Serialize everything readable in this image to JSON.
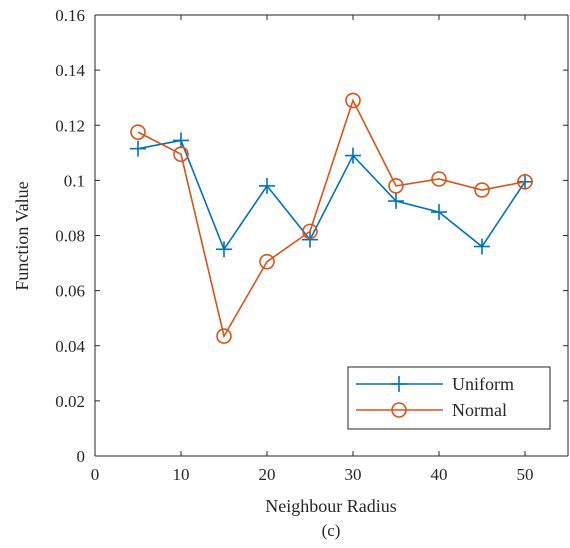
{
  "chart_data": {
    "type": "line",
    "xlabel": "Neighbour Radius",
    "ylabel": "Function Value",
    "caption": "(c)",
    "xlim": [
      0,
      55
    ],
    "ylim": [
      0,
      0.16
    ],
    "xticks": [
      0,
      10,
      20,
      30,
      40,
      50
    ],
    "yticks": [
      0,
      0.02,
      0.04,
      0.06,
      0.08,
      0.1,
      0.12,
      0.14,
      0.16
    ],
    "xtick_labels": [
      "0",
      "10",
      "20",
      "30",
      "40",
      "50"
    ],
    "ytick_labels": [
      "0",
      "0.02",
      "0.04",
      "0.06",
      "0.08",
      "0.1",
      "0.12",
      "0.14",
      "0.16"
    ],
    "grid": false,
    "legend_position": "bottom-right",
    "x": [
      5,
      10,
      15,
      20,
      25,
      30,
      35,
      40,
      45,
      50
    ],
    "series": [
      {
        "name": "Uniform",
        "marker": "plus",
        "color": "#0072BD",
        "values": [
          0.1115,
          0.1145,
          0.075,
          0.098,
          0.0785,
          0.109,
          0.0925,
          0.0885,
          0.076,
          0.0995
        ]
      },
      {
        "name": "Normal",
        "marker": "circle",
        "color": "#D95319",
        "values": [
          0.1175,
          0.1095,
          0.0435,
          0.0705,
          0.0815,
          0.129,
          0.098,
          0.1005,
          0.0965,
          0.0995
        ]
      }
    ]
  }
}
